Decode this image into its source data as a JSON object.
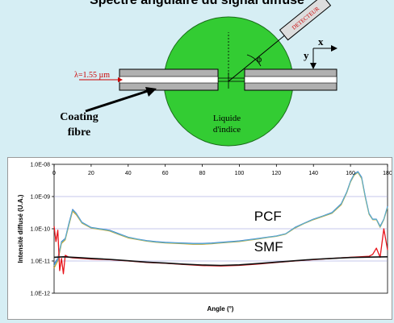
{
  "diagram": {
    "title": "Spectre angulaire du signal diffusé",
    "detector_label": "DETECTEUR",
    "wavelength_label": "λ=1.55 µm",
    "coating_label_1": "Coating",
    "coating_label_2": "fibre",
    "liquid_label_1": "Liquide",
    "liquid_label_2": "d'indice",
    "phi_label": "ϕ",
    "axis_x_label": "x",
    "axis_y_label": "y",
    "colors": {
      "background": "#d6eef4",
      "sphere": "#33cc33",
      "fibre": "#b0b0b0",
      "detector": "#dddddd",
      "detector_text": "#cc0000",
      "wavelength": "#cc0000"
    }
  },
  "chart_data": {
    "type": "line",
    "title": "",
    "xlabel": "Angle (°)",
    "ylabel": "Intensité diffusé (U.A.)",
    "xlim": [
      0,
      180
    ],
    "ylim": [
      1e-12,
      1e-08
    ],
    "yscale": "log",
    "x_ticks": [
      "0",
      "20",
      "40",
      "60",
      "80",
      "100",
      "120",
      "140",
      "160",
      "180"
    ],
    "y_ticks": [
      "1.0E-08",
      "1.0E-09",
      "1.0E-10",
      "1.0E-11",
      "1.0E-12"
    ],
    "grid": "horizontal",
    "annotations": [
      {
        "text": "PCF",
        "x": 108,
        "y": 1.8e-10
      },
      {
        "text": "SMF",
        "x": 108,
        "y": 2e-11
      }
    ],
    "series": [
      {
        "group": "PCF",
        "color": "#2e6fd1",
        "x": [
          0,
          2,
          4,
          6,
          8,
          10,
          12,
          15,
          20,
          25,
          30,
          35,
          40,
          45,
          50,
          55,
          60,
          65,
          70,
          75,
          80,
          85,
          90,
          95,
          100,
          105,
          110,
          115,
          120,
          125,
          130,
          135,
          140,
          145,
          150,
          155,
          158,
          160,
          162,
          164,
          166,
          168,
          170,
          172,
          174,
          176,
          178,
          180
        ],
        "y": [
          8e-12,
          1.2e-11,
          4e-11,
          5e-11,
          1.5e-10,
          4e-10,
          3e-10,
          1.6e-10,
          1.1e-10,
          1e-10,
          9e-11,
          7e-11,
          5.5e-11,
          4.8e-11,
          4.3e-11,
          4e-11,
          3.8e-11,
          3.7e-11,
          3.6e-11,
          3.5e-11,
          3.5e-11,
          3.6e-11,
          3.8e-11,
          4e-11,
          4.2e-11,
          4.6e-11,
          5e-11,
          5.5e-11,
          6e-11,
          7e-11,
          1.1e-10,
          1.5e-10,
          2e-10,
          2.5e-10,
          3.2e-10,
          6e-10,
          1.4e-09,
          3e-09,
          5e-09,
          6e-09,
          4e-09,
          1e-09,
          3e-10,
          2e-10,
          2e-10,
          1.2e-10,
          2e-10,
          5e-10
        ]
      },
      {
        "group": "PCF",
        "color": "#d4a017",
        "x": [
          0,
          2,
          4,
          6,
          8,
          10,
          12,
          15,
          20,
          25,
          30,
          35,
          40,
          45,
          50,
          55,
          60,
          65,
          70,
          75,
          80,
          85,
          90,
          95,
          100,
          105,
          110,
          115,
          120,
          125,
          130,
          135,
          140,
          145,
          150,
          155,
          158,
          160,
          162,
          164,
          166,
          168,
          170,
          172,
          174,
          176,
          178,
          180
        ],
        "y": [
          6e-12,
          1e-11,
          3.5e-11,
          4.5e-11,
          1.3e-10,
          3.5e-10,
          2.7e-10,
          1.5e-10,
          1.05e-10,
          9.5e-11,
          8.5e-11,
          6.6e-11,
          5.2e-11,
          4.6e-11,
          4.1e-11,
          3.8e-11,
          3.6e-11,
          3.5e-11,
          3.4e-11,
          3.3e-11,
          3.3e-11,
          3.4e-11,
          3.6e-11,
          3.8e-11,
          4e-11,
          4.4e-11,
          4.8e-11,
          5.3e-11,
          5.8e-11,
          6.8e-11,
          1.05e-10,
          1.45e-10,
          1.9e-10,
          2.4e-10,
          3e-10,
          5.5e-10,
          1.3e-09,
          2.8e-09,
          4.6e-09,
          5.6e-09,
          3.6e-09,
          9e-10,
          2.8e-10,
          1.9e-10,
          1.9e-10,
          1.1e-10,
          1.9e-10,
          4.5e-10
        ]
      },
      {
        "group": "PCF",
        "color": "#5fb3c8",
        "x": [
          0,
          2,
          4,
          6,
          8,
          10,
          12,
          15,
          20,
          25,
          30,
          35,
          40,
          45,
          50,
          55,
          60,
          65,
          70,
          75,
          80,
          85,
          90,
          95,
          100,
          105,
          110,
          115,
          120,
          125,
          130,
          135,
          140,
          145,
          150,
          155,
          158,
          160,
          162,
          164,
          166,
          168,
          170,
          172,
          174,
          176,
          178,
          180
        ],
        "y": [
          7e-12,
          1.1e-11,
          3.8e-11,
          4.8e-11,
          1.4e-10,
          3.8e-10,
          2.9e-10,
          1.55e-10,
          1.08e-10,
          9.8e-11,
          8.8e-11,
          6.8e-11,
          5.4e-11,
          4.7e-11,
          4.2e-11,
          3.9e-11,
          3.7e-11,
          3.6e-11,
          3.5e-11,
          3.4e-11,
          3.4e-11,
          3.5e-11,
          3.7e-11,
          3.9e-11,
          4.1e-11,
          4.5e-11,
          4.9e-11,
          5.4e-11,
          5.9e-11,
          6.9e-11,
          1.08e-10,
          1.48e-10,
          1.95e-10,
          2.45e-10,
          3.1e-10,
          5.8e-10,
          1.35e-09,
          2.9e-09,
          4.8e-09,
          5.8e-09,
          3.8e-09,
          9.5e-10,
          2.9e-10,
          1.95e-10,
          1.95e-10,
          1.15e-10,
          1.95e-10,
          4.8e-10
        ]
      },
      {
        "group": "SMF",
        "color": "#e8141b",
        "x": [
          0,
          1,
          2,
          3,
          4,
          5,
          6,
          8,
          10,
          15,
          20,
          30,
          40,
          50,
          60,
          70,
          80,
          90,
          100,
          110,
          120,
          130,
          140,
          150,
          160,
          165,
          170,
          172,
          174,
          176,
          178,
          180
        ],
        "y": [
          1.2e-10,
          4e-11,
          9e-11,
          5e-12,
          1.2e-11,
          4e-12,
          1.5e-11,
          1.3e-11,
          1.25e-11,
          1.2e-11,
          1.15e-11,
          1.1e-11,
          1e-11,
          9e-12,
          8.5e-12,
          7.8e-12,
          7.2e-12,
          7e-12,
          7.3e-12,
          8e-12,
          9e-12,
          1e-11,
          1.1e-11,
          1.2e-11,
          1.3e-11,
          1.35e-11,
          1.4e-11,
          1.6e-11,
          2.5e-11,
          1.3e-11,
          1e-10,
          2.2e-11
        ]
      },
      {
        "group": "SMF",
        "color": "#111111",
        "x": [
          0,
          5,
          10,
          15,
          20,
          30,
          40,
          50,
          60,
          70,
          80,
          90,
          100,
          110,
          120,
          130,
          140,
          150,
          160,
          170,
          180
        ],
        "y": [
          1.3e-11,
          1.35e-11,
          1.3e-11,
          1.25e-11,
          1.2e-11,
          1.12e-11,
          1.02e-11,
          9.2e-12,
          8.6e-12,
          8e-12,
          7.5e-12,
          7.3e-12,
          7.6e-12,
          8.3e-12,
          9.2e-12,
          1.02e-11,
          1.12e-11,
          1.2e-11,
          1.28e-11,
          1.32e-11,
          1.35e-11
        ]
      }
    ]
  }
}
